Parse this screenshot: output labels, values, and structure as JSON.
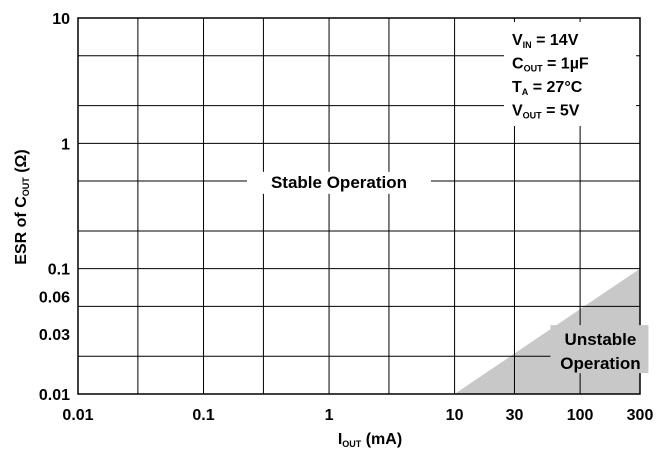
{
  "chart_data": {
    "type": "area",
    "x_scale": "log",
    "y_scale": "log",
    "xlim": [
      0.01,
      300
    ],
    "ylim": [
      0.01,
      10
    ],
    "x_ticks": [
      {
        "value": 0.01,
        "label": "0.01"
      },
      {
        "value": 0.1,
        "label": "0.1"
      },
      {
        "value": 1,
        "label": "1"
      },
      {
        "value": 10,
        "label": "10"
      },
      {
        "value": 30,
        "label": "30"
      },
      {
        "value": 100,
        "label": "100"
      },
      {
        "value": 300,
        "label": "300"
      }
    ],
    "y_ticks": [
      {
        "value": 0.01,
        "label": "0.01"
      },
      {
        "value": 0.03,
        "label": "0.03"
      },
      {
        "value": 0.06,
        "label": "0.06"
      },
      {
        "value": 0.1,
        "label": "0.1"
      },
      {
        "value": 1,
        "label": "1"
      },
      {
        "value": 10,
        "label": "10"
      }
    ],
    "x_gridlines": [
      0.03,
      0.1,
      0.3,
      1,
      3,
      10,
      30,
      100
    ],
    "y_gridlines": [
      0.02,
      0.05,
      0.1,
      0.2,
      0.5,
      1,
      2,
      5
    ],
    "xlabel": {
      "main": "I",
      "sub": "OUT",
      "suffix": " (mA)"
    },
    "ylabel": {
      "main": "ESR of C",
      "sub": "OUT",
      "suffix": " (Ω)"
    },
    "regions": [
      {
        "label": "Stable Operation",
        "fill": "#ffffff",
        "label_at": {
          "x": 1.2,
          "y": 0.45
        }
      },
      {
        "label_lines": [
          "Unstable",
          "Operation"
        ],
        "fill": "#c8c8c8",
        "boundary": [
          {
            "x": 10,
            "y": 0.01
          },
          {
            "x": 300,
            "y": 0.1
          },
          {
            "x": 300,
            "y": 0.01
          }
        ],
        "label_at": {
          "x": 140,
          "y": 0.017
        }
      }
    ],
    "conditions": [
      {
        "main": "V",
        "sub": "IN",
        "rest": " = 14V"
      },
      {
        "main": "C",
        "sub": "OUT",
        "rest": " = 1µF"
      },
      {
        "main": "T",
        "sub": "A",
        "rest": " = 27°C"
      },
      {
        "main": "V",
        "sub": "OUT",
        "rest": " = 5V"
      }
    ],
    "grid": true,
    "legend": "none",
    "colors": {
      "grid": "#000000",
      "unstable_fill": "#c8c8c8",
      "background": "#ffffff"
    }
  }
}
